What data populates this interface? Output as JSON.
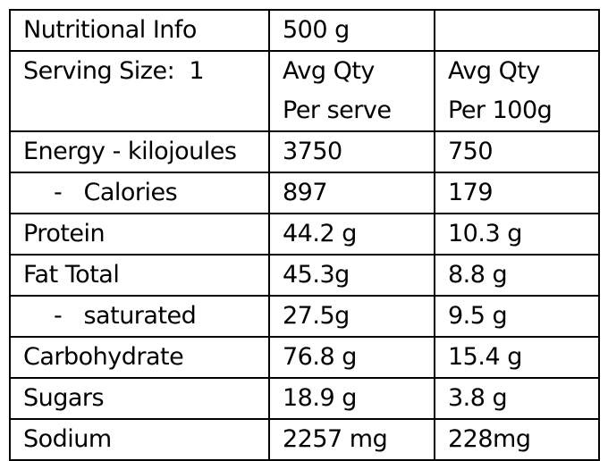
{
  "table": {
    "rows": [
      [
        "Nutritional Info",
        "500 g"
      ],
      [
        "Serving Size:  1",
        [
          "Avg Qty",
          "Per serve"
        ],
        [
          "Avg Qty",
          "Per 100g"
        ]
      ],
      [
        "Energy - kilojoules",
        "3750",
        "750"
      ],
      [
        "-   Calories",
        "897",
        "179"
      ],
      [
        "Protein",
        "44.2 g",
        "10.3 g"
      ],
      [
        "Fat Total",
        "45.3g",
        "8.8 g"
      ],
      [
        "-   saturated",
        "27.5g",
        "9.5 g"
      ],
      [
        "Carbohydrate",
        "76.8 g",
        "15.4 g"
      ],
      [
        "Sugars",
        "18.9 g",
        "3.8 g"
      ],
      [
        "Sodium",
        "2257 mg",
        "228mg"
      ]
    ]
  }
}
